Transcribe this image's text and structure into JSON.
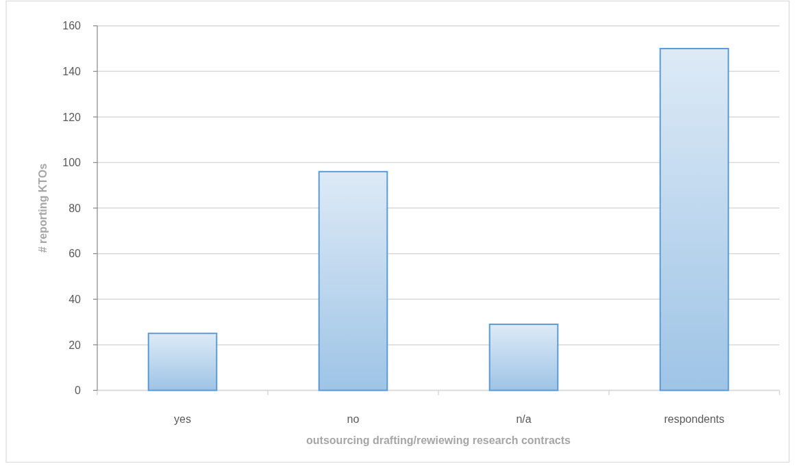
{
  "chart_data": {
    "type": "bar",
    "categories": [
      "yes",
      "no",
      "n/a",
      "respondents"
    ],
    "values": [
      25,
      96,
      29,
      150
    ],
    "color": "#5b9bd5",
    "xlabel": "outsourcing drafting/rewiewing research contracts",
    "ylabel": "# reporting KTOs",
    "ylim": [
      0,
      160
    ],
    "yticks": [
      0,
      20,
      40,
      60,
      80,
      100,
      120,
      140,
      160
    ],
    "grid": "y"
  }
}
